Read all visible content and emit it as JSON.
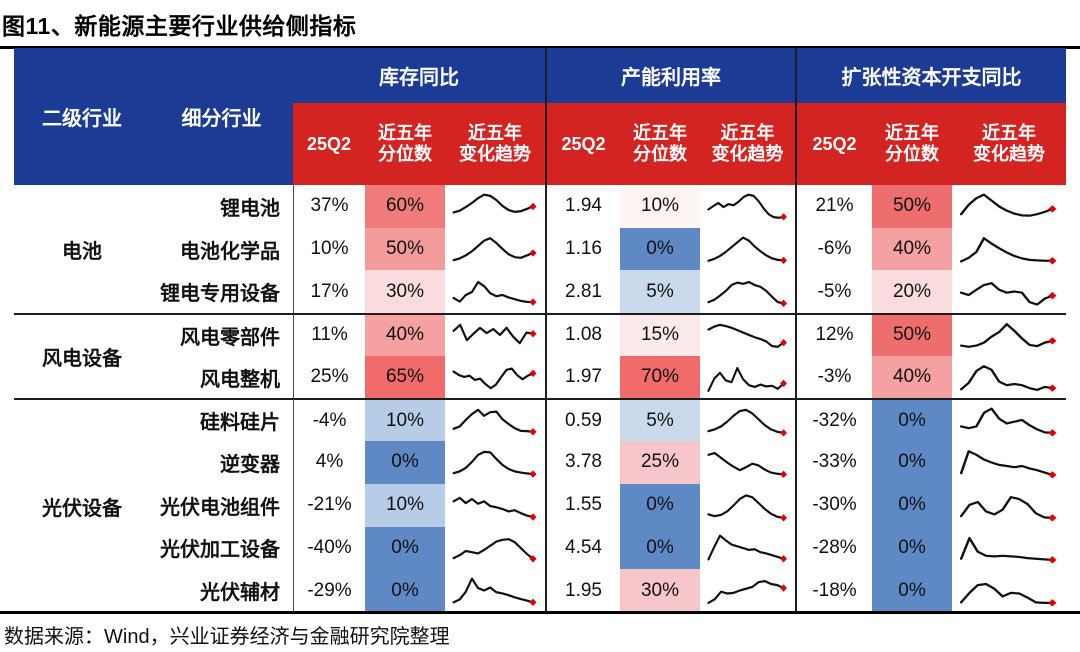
{
  "title": "图11、新能源主要行业供给侧指标",
  "source": "数据来源：Wind，兴业证券经济与金融研究院整理",
  "colors": {
    "header_blue": "#1c3b94",
    "header_red": "#d42422",
    "spark_line": "#111111",
    "spark_dot": "#e00000",
    "percentile_scale": {
      "r70": "#f16b6b",
      "r60": "#ef7b7b",
      "r50": "#ee6e6e",
      "r50l": "#f49b9b",
      "r40": "#f5a0a1",
      "p30": "#fadbde",
      "p25": "#f7c6ca",
      "p15": "#fce9eb",
      "p10": "#fdf4f4",
      "b10": "#b7cce6",
      "b5": "#cad9ec",
      "b0": "#5e89c4"
    }
  },
  "header": {
    "col1": "二级行业",
    "col2": "细分行业",
    "groups": [
      {
        "label": "库存同比"
      },
      {
        "label": "产能利用率"
      },
      {
        "label": "扩张性资本开支同比"
      }
    ],
    "sub": {
      "q": "25Q2",
      "pct": "近五年\n分位数",
      "trend": "近五年\n变化趋势"
    }
  },
  "chart_data": {
    "type": "table",
    "title": "图11、新能源主要行业供给侧指标",
    "column_groups": [
      "库存同比",
      "产能利用率",
      "扩张性资本开支同比"
    ],
    "sub_columns": [
      "25Q2",
      "近五年分位数",
      "近五年变化趋势"
    ],
    "row_groups": [
      {
        "label": "电池",
        "span": 3
      },
      {
        "label": "风电设备",
        "span": 2
      },
      {
        "label": "光伏设备",
        "span": 5
      }
    ],
    "rows": [
      {
        "group": "电池",
        "name": "锂电池",
        "inv": {
          "q": "37%",
          "pct": "60%",
          "tone": "r60",
          "spark": [
            30,
            36,
            48,
            62,
            78,
            90,
            86,
            72,
            52,
            38,
            32,
            34,
            42,
            50
          ]
        },
        "cap": {
          "q": "1.94",
          "pct": "10%",
          "tone": "p10",
          "spark": [
            40,
            52,
            62,
            48,
            58,
            54,
            66,
            82,
            90,
            86,
            68,
            44,
            24,
            14,
            12,
            15
          ]
        },
        "capex": {
          "q": "21%",
          "pct": "50%",
          "tone": "r50",
          "spark": [
            24,
            56,
            78,
            90,
            70,
            50,
            36,
            26,
            20,
            19,
            24,
            32,
            42
          ]
        }
      },
      {
        "group": "电池",
        "name": "电池化学品",
        "inv": {
          "q": "10%",
          "pct": "50%",
          "tone": "r50l",
          "spark": [
            14,
            20,
            30,
            44,
            62,
            80,
            88,
            72,
            52,
            34,
            24,
            22,
            30,
            38
          ]
        },
        "cap": {
          "q": "1.16",
          "pct": "0%",
          "tone": "b0",
          "spark": [
            12,
            18,
            28,
            42,
            58,
            74,
            90,
            80,
            60,
            44,
            30,
            20,
            15,
            13
          ]
        },
        "capex": {
          "q": "-6%",
          "pct": "40%",
          "tone": "r40",
          "spark": [
            10,
            22,
            42,
            88,
            70,
            54,
            40,
            28,
            20,
            15,
            13,
            12,
            12
          ]
        }
      },
      {
        "group": "电池",
        "name": "锂电专用设备",
        "inv": {
          "q": "17%",
          "pct": "30%",
          "tone": "p30",
          "spark": [
            28,
            16,
            38,
            48,
            82,
            68,
            44,
            34,
            38,
            30,
            24,
            18,
            15,
            14
          ]
        },
        "cap": {
          "q": "2.81",
          "pct": "5%",
          "tone": "b5",
          "spark": [
            14,
            22,
            36,
            52,
            72,
            80,
            76,
            82,
            72,
            66,
            52,
            32,
            14,
            10
          ]
        },
        "capex": {
          "q": "-5%",
          "pct": "20%",
          "tone": "p30",
          "spark": [
            46,
            38,
            56,
            72,
            78,
            56,
            46,
            50,
            46,
            14,
            6,
            26,
            36
          ]
        }
      },
      {
        "group": "风电设备",
        "name": "风电零部件",
        "inv": {
          "q": "11%",
          "pct": "40%",
          "tone": "r40",
          "spark": [
            66,
            86,
            34,
            56,
            76,
            58,
            72,
            52,
            76,
            46,
            24,
            60,
            56
          ]
        },
        "cap": {
          "q": "1.08",
          "pct": "15%",
          "tone": "p15",
          "spark": [
            70,
            80,
            86,
            82,
            76,
            68,
            60,
            52,
            44,
            38,
            30,
            14,
            12,
            26
          ]
        },
        "capex": {
          "q": "12%",
          "pct": "50%",
          "tone": "r50",
          "spark": [
            16,
            12,
            16,
            26,
            46,
            62,
            88,
            66,
            40,
            18,
            14,
            26,
            32
          ]
        }
      },
      {
        "group": "风电设备",
        "name": "风电整机",
        "inv": {
          "q": "25%",
          "pct": "65%",
          "tone": "r70",
          "spark": [
            70,
            58,
            52,
            56,
            42,
            46,
            28,
            14,
            26,
            52,
            76,
            80,
            58,
            44,
            56,
            64
          ]
        },
        "cap": {
          "q": "1.97",
          "pct": "70%",
          "tone": "r70",
          "spark": [
            5,
            46,
            66,
            40,
            34,
            82,
            44,
            24,
            18,
            26,
            20,
            22,
            12,
            30
          ]
        },
        "capex": {
          "q": "-3%",
          "pct": "40%",
          "tone": "r40",
          "spark": [
            10,
            32,
            72,
            88,
            76,
            36,
            24,
            28,
            24,
            14,
            8,
            18,
            14
          ]
        }
      },
      {
        "group": "光伏设备",
        "name": "硅料硅片",
        "inv": {
          "q": "-4%",
          "pct": "10%",
          "tone": "b10",
          "spark": [
            22,
            30,
            52,
            72,
            86,
            66,
            78,
            80,
            54,
            38,
            24,
            15,
            14,
            12
          ]
        },
        "cap": {
          "q": "0.59",
          "pct": "5%",
          "tone": "b5",
          "spark": [
            14,
            20,
            30,
            46,
            66,
            82,
            86,
            74,
            54,
            34,
            20,
            12,
            8
          ]
        },
        "capex": {
          "q": "-32%",
          "pct": "0%",
          "tone": "b0",
          "spark": [
            30,
            24,
            30,
            76,
            90,
            56,
            40,
            46,
            52,
            34,
            20,
            10,
            8
          ]
        }
      },
      {
        "group": "光伏设备",
        "name": "逆变器",
        "inv": {
          "q": "4%",
          "pct": "0%",
          "tone": "b0",
          "spark": [
            14,
            20,
            32,
            52,
            76,
            86,
            84,
            62,
            42,
            28,
            20,
            16,
            13,
            11
          ]
        },
        "cap": {
          "q": "3.78",
          "pct": "25%",
          "tone": "p25",
          "spark": [
            76,
            82,
            66,
            50,
            36,
            24,
            34,
            46,
            40,
            26,
            16,
            12,
            10
          ]
        },
        "capex": {
          "q": "-33%",
          "pct": "0%",
          "tone": "b0",
          "spark": [
            14,
            88,
            76,
            60,
            50,
            42,
            38,
            34,
            38,
            30,
            24,
            16,
            8
          ]
        }
      },
      {
        "group": "光伏设备",
        "name": "光伏电池组件",
        "inv": {
          "q": "-21%",
          "pct": "10%",
          "tone": "b10",
          "spark": [
            64,
            76,
            58,
            72,
            56,
            64,
            48,
            44,
            38,
            30,
            34,
            24,
            16,
            11
          ]
        },
        "cap": {
          "q": "1.55",
          "pct": "0%",
          "tone": "b0",
          "spark": [
            20,
            14,
            18,
            30,
            50,
            72,
            84,
            78,
            58,
            38,
            22,
            12,
            8
          ]
        },
        "capex": {
          "q": "-30%",
          "pct": "0%",
          "tone": "b0",
          "spark": [
            14,
            52,
            62,
            30,
            20,
            36,
            78,
            72,
            55,
            24,
            10,
            8
          ]
        }
      },
      {
        "group": "光伏设备",
        "name": "光伏加工设备",
        "inv": {
          "q": "-40%",
          "pct": "0%",
          "tone": "b0",
          "spark": [
            14,
            24,
            38,
            34,
            30,
            42,
            56,
            70,
            76,
            78,
            68,
            48,
            28,
            12
          ]
        },
        "cap": {
          "q": "4.54",
          "pct": "0%",
          "tone": "b0",
          "spark": [
            10,
            52,
            90,
            74,
            60,
            54,
            48,
            42,
            44,
            34,
            30,
            24,
            18,
            12
          ]
        },
        "capex": {
          "q": "-28%",
          "pct": "0%",
          "tone": "b0",
          "spark": [
            12,
            82,
            36,
            22,
            20,
            22,
            20,
            18,
            14,
            12,
            10,
            8
          ]
        }
      },
      {
        "group": "光伏设备",
        "name": "光伏辅材",
        "inv": {
          "q": "-29%",
          "pct": "0%",
          "tone": "b0",
          "spark": [
            10,
            20,
            46,
            90,
            58,
            50,
            60,
            44,
            40,
            34,
            27,
            21,
            16,
            10
          ]
        },
        "cap": {
          "q": "1.95",
          "pct": "30%",
          "tone": "p25",
          "spark": [
            8,
            20,
            46,
            40,
            42,
            50,
            56,
            62,
            78,
            82,
            72,
            68,
            58
          ]
        },
        "capex": {
          "q": "-18%",
          "pct": "0%",
          "tone": "b0",
          "spark": [
            10,
            42,
            68,
            72,
            56,
            30,
            42,
            40,
            26,
            10,
            8,
            8
          ]
        }
      }
    ]
  }
}
